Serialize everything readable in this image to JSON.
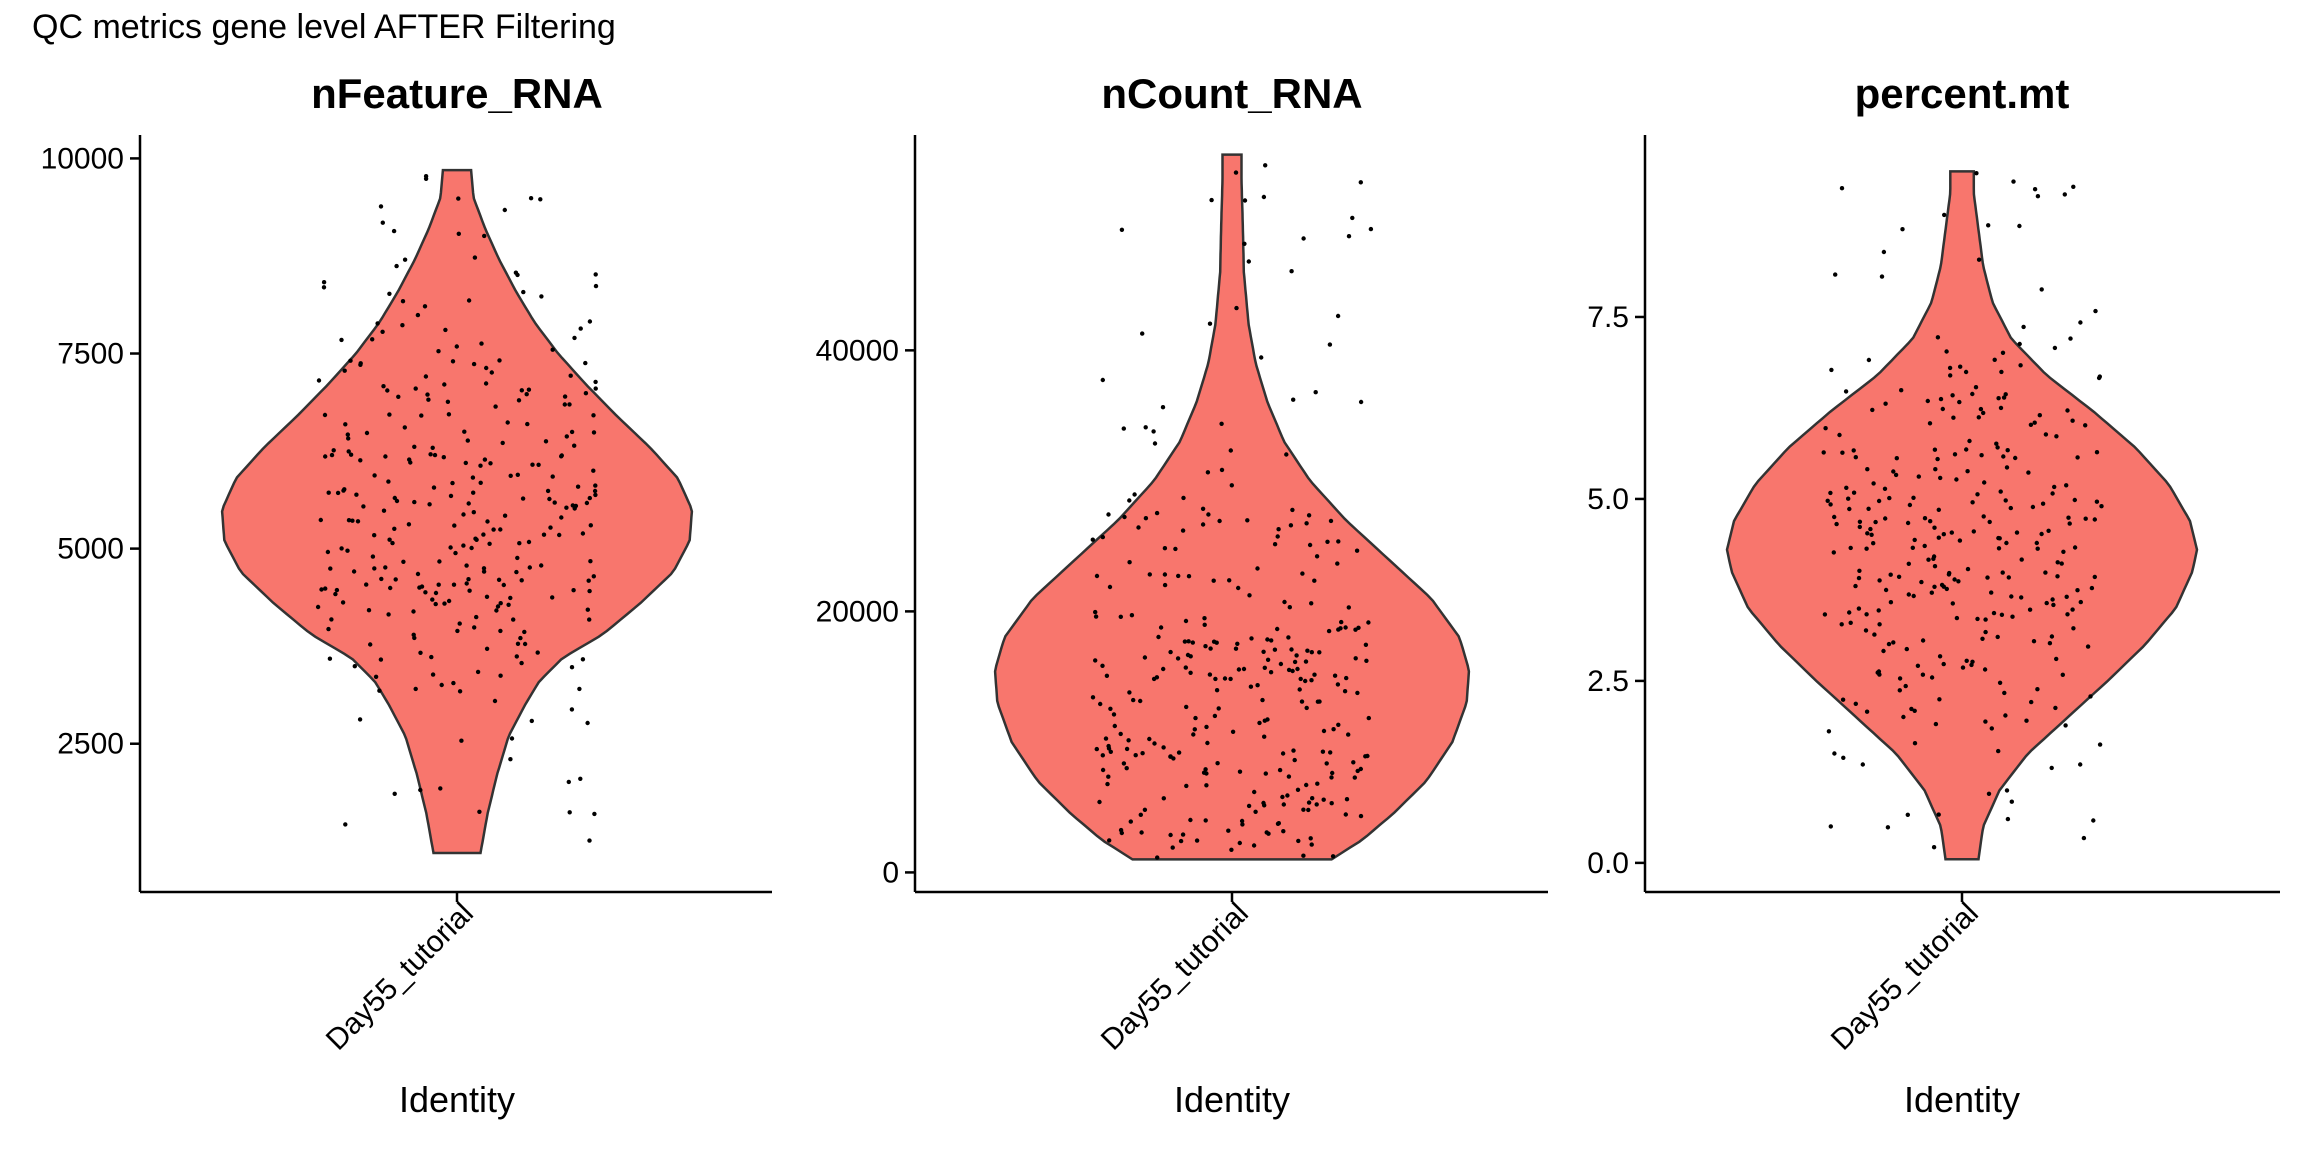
{
  "figure_title": "QC metrics gene level AFTER Filtering",
  "fill_color": "#F8766D",
  "point_color": "#000000",
  "chart_data": [
    {
      "type": "violin",
      "title": "nFeature_RNA",
      "xlabel": "Identity",
      "ylabel": "",
      "categories": [
        "Day55_tutorial"
      ],
      "ylim": [
        600,
        10300
      ],
      "yticks": [
        2500,
        5000,
        7500,
        10000
      ],
      "ytick_labels": [
        "2500",
        "5000",
        "7500",
        "10000"
      ],
      "data_range": [
        1100,
        9850
      ],
      "density_profile": [
        [
          1100,
          0.1
        ],
        [
          1600,
          0.13
        ],
        [
          2100,
          0.17
        ],
        [
          2600,
          0.22
        ],
        [
          3000,
          0.29
        ],
        [
          3300,
          0.35
        ],
        [
          3600,
          0.45
        ],
        [
          3900,
          0.62
        ],
        [
          4300,
          0.78
        ],
        [
          4700,
          0.92
        ],
        [
          5100,
          0.99
        ],
        [
          5500,
          1.0
        ],
        [
          5900,
          0.94
        ],
        [
          6300,
          0.82
        ],
        [
          6700,
          0.68
        ],
        [
          7100,
          0.55
        ],
        [
          7500,
          0.43
        ],
        [
          7900,
          0.33
        ],
        [
          8300,
          0.25
        ],
        [
          8700,
          0.18
        ],
        [
          9100,
          0.12
        ],
        [
          9500,
          0.07
        ],
        [
          9850,
          0.06
        ]
      ],
      "n_points": 300,
      "seed": 11
    },
    {
      "type": "violin",
      "title": "nCount_RNA",
      "xlabel": "Identity",
      "ylabel": "",
      "categories": [
        "Day55_tutorial"
      ],
      "ylim": [
        -1500,
        56500
      ],
      "yticks": [
        0,
        20000,
        40000
      ],
      "ytick_labels": [
        "0",
        "20000",
        "40000"
      ],
      "data_range": [
        1000,
        55000
      ],
      "density_profile": [
        [
          1000,
          0.42
        ],
        [
          2500,
          0.55
        ],
        [
          4500,
          0.68
        ],
        [
          7000,
          0.82
        ],
        [
          10000,
          0.93
        ],
        [
          13000,
          0.99
        ],
        [
          15500,
          1.0
        ],
        [
          18000,
          0.96
        ],
        [
          21000,
          0.84
        ],
        [
          24000,
          0.66
        ],
        [
          27000,
          0.48
        ],
        [
          30000,
          0.33
        ],
        [
          33000,
          0.22
        ],
        [
          36000,
          0.15
        ],
        [
          39000,
          0.1
        ],
        [
          42000,
          0.07
        ],
        [
          46000,
          0.05
        ],
        [
          50000,
          0.045
        ],
        [
          53000,
          0.04
        ],
        [
          55000,
          0.04
        ]
      ],
      "n_points": 300,
      "seed": 23
    },
    {
      "type": "violin",
      "title": "percent.mt",
      "xlabel": "Identity",
      "ylabel": "",
      "categories": [
        "Day55_tutorial"
      ],
      "ylim": [
        -0.4,
        10.0
      ],
      "yticks": [
        0.0,
        2.5,
        5.0,
        7.5
      ],
      "ytick_labels": [
        "0.0",
        "2.5",
        "5.0",
        "7.5"
      ],
      "data_range": [
        0.05,
        9.5
      ],
      "density_profile": [
        [
          0.05,
          0.07
        ],
        [
          0.5,
          0.09
        ],
        [
          1.0,
          0.16
        ],
        [
          1.5,
          0.28
        ],
        [
          2.0,
          0.45
        ],
        [
          2.5,
          0.62
        ],
        [
          3.0,
          0.78
        ],
        [
          3.5,
          0.91
        ],
        [
          4.0,
          0.98
        ],
        [
          4.3,
          1.0
        ],
        [
          4.7,
          0.97
        ],
        [
          5.2,
          0.88
        ],
        [
          5.7,
          0.74
        ],
        [
          6.2,
          0.56
        ],
        [
          6.7,
          0.36
        ],
        [
          7.2,
          0.21
        ],
        [
          7.7,
          0.13
        ],
        [
          8.2,
          0.09
        ],
        [
          8.7,
          0.07
        ],
        [
          9.2,
          0.05
        ],
        [
          9.5,
          0.05
        ]
      ],
      "n_points": 300,
      "seed": 37
    }
  ]
}
